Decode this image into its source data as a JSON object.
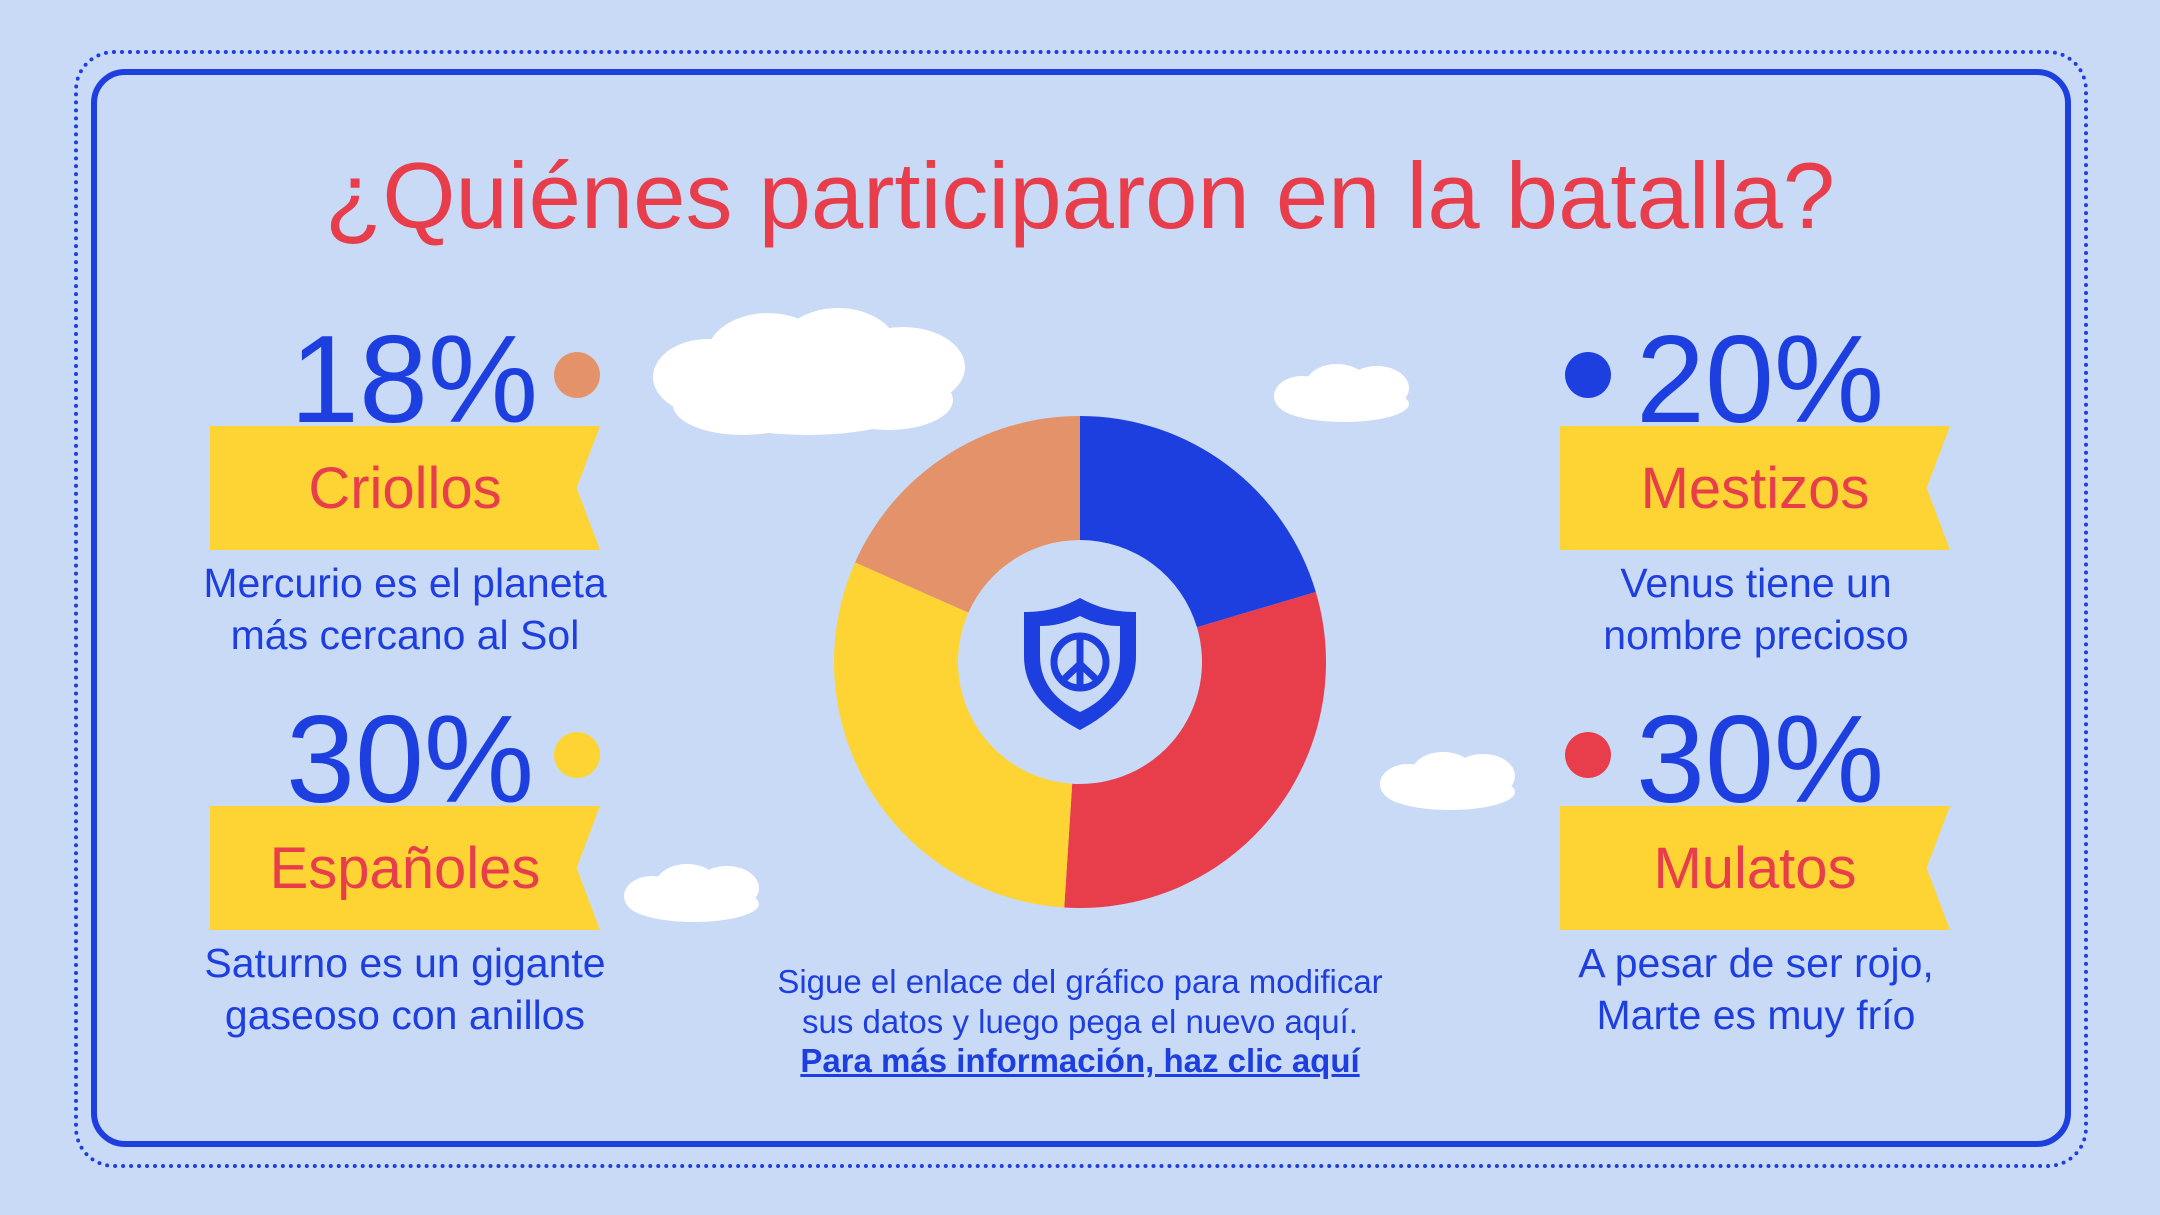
{
  "title": "¿Quiénes participaron en la batalla?",
  "colors": {
    "background": "#c9daf6",
    "accent_blue": "#1e3fe0",
    "accent_red": "#e83d4b",
    "ribbon_yellow": "#fdd433",
    "salmon": "#e4926a"
  },
  "chart_data": {
    "type": "pie",
    "variant": "donut",
    "categories": [
      "Mestizos",
      "Mulatos",
      "Españoles",
      "Criollos"
    ],
    "values": [
      20,
      30,
      30,
      18
    ],
    "unit": "%",
    "colors": [
      "#1e3fe0",
      "#e83d4b",
      "#fdd433",
      "#e4926a"
    ],
    "center_icon": "shield-peace-icon"
  },
  "groups": {
    "criollos": {
      "percent": "18%",
      "name": "Criollos",
      "desc_line1": "Mercurio es el planeta",
      "desc_line2": "más cercano al Sol",
      "color": "#e4926a"
    },
    "espanoles": {
      "percent": "30%",
      "name": "Españoles",
      "desc_line1": "Saturno es un gigante",
      "desc_line2": "gaseoso con anillos",
      "color": "#fdd433"
    },
    "mestizos": {
      "percent": "20%",
      "name": "Mestizos",
      "desc_line1": "Venus tiene un",
      "desc_line2": "nombre precioso",
      "color": "#1e3fe0"
    },
    "mulatos": {
      "percent": "30%",
      "name": "Mulatos",
      "desc_line1": "A pesar de ser rojo,",
      "desc_line2": "Marte es muy frío",
      "color": "#e83d4b"
    }
  },
  "note": {
    "line1": "Sigue el enlace del gráfico para modificar",
    "line2": "sus datos y luego pega el nuevo aquí.",
    "link": "Para más información, haz clic aquí"
  }
}
